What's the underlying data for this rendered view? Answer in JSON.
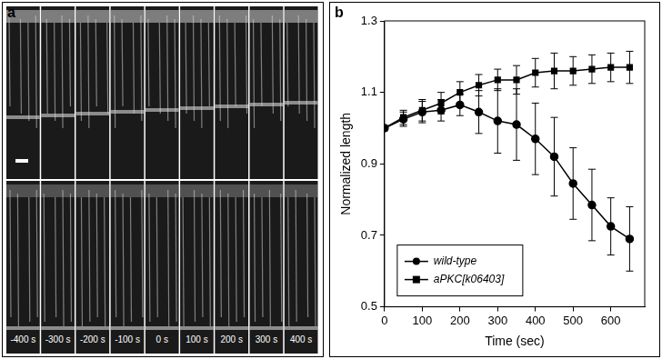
{
  "panel_a": {
    "label": "a",
    "frame_labels": [
      "-400 s",
      "-300 s",
      "-200 s",
      "-100 s",
      "0 s",
      "100 s",
      "200 s",
      "300 s",
      "400 s"
    ]
  },
  "panel_b": {
    "label": "b"
  },
  "chart_data": {
    "type": "line",
    "x_label": "Time (sec)",
    "y_label": "Normalized length",
    "x": [
      0,
      50,
      100,
      150,
      200,
      250,
      300,
      350,
      400,
      450,
      500,
      550,
      600,
      650
    ],
    "series": [
      {
        "name": "wild-type",
        "color": "#000000",
        "marker": "circle",
        "line_style": "solid",
        "values": [
          1.0,
          1.025,
          1.045,
          1.05,
          1.065,
          1.045,
          1.02,
          1.01,
          0.97,
          0.92,
          0.845,
          0.785,
          0.725,
          0.69
        ],
        "errors": [
          0,
          0.02,
          0.03,
          0.03,
          0.03,
          0.06,
          0.09,
          0.1,
          0.1,
          0.11,
          0.1,
          0.1,
          0.08,
          0.09
        ]
      },
      {
        "name": "aPKC[k06403]",
        "color": "#000000",
        "marker": "square",
        "line_style": "solid",
        "values": [
          1.0,
          1.03,
          1.05,
          1.07,
          1.1,
          1.12,
          1.135,
          1.135,
          1.155,
          1.16,
          1.16,
          1.165,
          1.17,
          1.17
        ],
        "errors": [
          0,
          0.02,
          0.03,
          0.03,
          0.03,
          0.03,
          0.03,
          0.04,
          0.04,
          0.05,
          0.04,
          0.04,
          0.04,
          0.045
        ]
      }
    ],
    "xlim": [
      0,
      690
    ],
    "xticks": [
      0,
      100,
      200,
      300,
      400,
      500,
      600
    ],
    "ylim": [
      0.5,
      1.3
    ],
    "yticks": [
      0.5,
      0.7,
      0.9,
      1.1,
      1.3
    ],
    "grid": false,
    "legend": "lower left"
  }
}
